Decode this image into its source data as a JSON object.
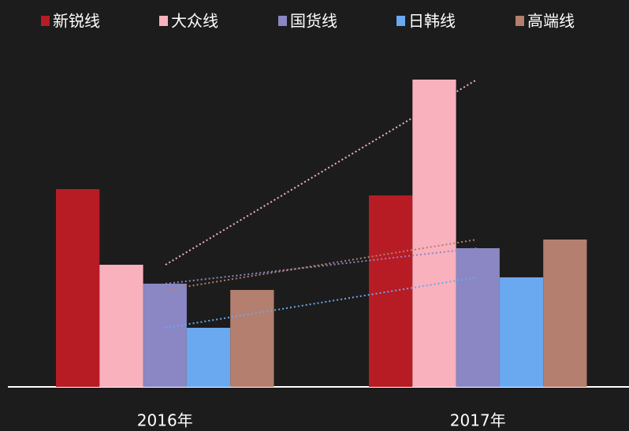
{
  "chart_data": {
    "type": "bar",
    "categories": [
      "2016年",
      "2017年"
    ],
    "series": [
      {
        "name": "新锐线",
        "color": "#b71c24",
        "values": [
          251,
          243
        ]
      },
      {
        "name": "大众线",
        "color": "#f8b1bd",
        "values": [
          155,
          390
        ]
      },
      {
        "name": "国货线",
        "color": "#8a87c4",
        "values": [
          131,
          176
        ]
      },
      {
        "name": "日韩线",
        "color": "#6aa8f0",
        "values": [
          75,
          139
        ]
      },
      {
        "name": "高端线",
        "color": "#b47f6e",
        "values": [
          123,
          187
        ]
      }
    ],
    "ylim": [
      0,
      400
    ],
    "trendlines": [
      1,
      2,
      3,
      4
    ],
    "legend": "top"
  }
}
